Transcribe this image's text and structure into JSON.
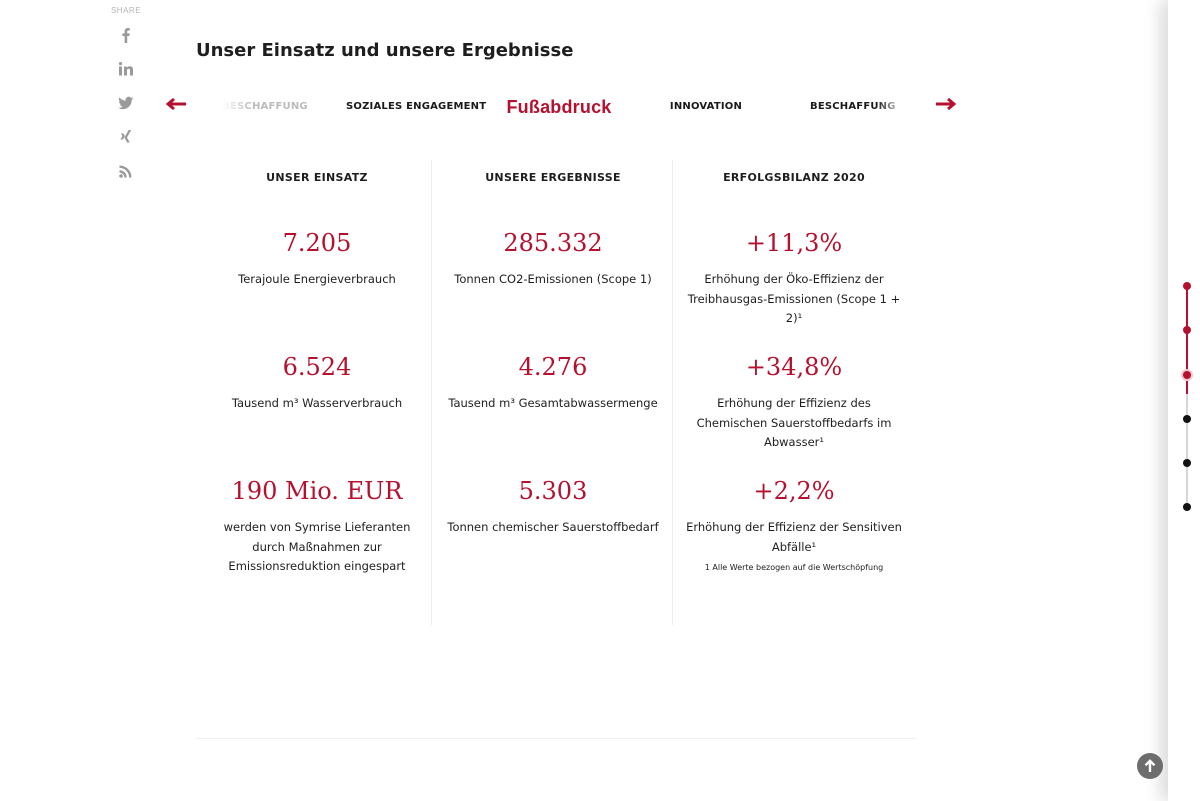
{
  "share": {
    "label": "SHARE",
    "icons": [
      "facebook-icon",
      "linkedin-icon",
      "twitter-icon",
      "xing-icon",
      "rss-icon"
    ]
  },
  "section": {
    "title": "Unser Einsatz und unsere Ergebnisse"
  },
  "tabs": {
    "items": [
      "BESCHAFFUNG",
      "SOZIALES ENGAGEMENT",
      "Fußabdruck",
      "INNOVATION",
      "BESCHAFFUNG"
    ],
    "active_index": 2
  },
  "columns": [
    {
      "heading": "UNSER EINSATZ",
      "metrics": [
        {
          "value": "7.205",
          "text": "Terajoule Energieverbrauch"
        },
        {
          "value": "6.524",
          "text": "Tausend m³ Wasserverbrauch"
        },
        {
          "value": "190 Mio. EUR",
          "text": "werden von Symrise Lieferanten durch Maßnahmen zur Emissionsreduktion eingespart"
        }
      ]
    },
    {
      "heading": "UNSERE ERGEBNISSE",
      "metrics": [
        {
          "value": "285.332",
          "text": "Tonnen CO2-Emissionen (Scope 1)"
        },
        {
          "value": "4.276",
          "text": "Tausend m³ Gesamtabwassermenge"
        },
        {
          "value": "5.303",
          "text": "Tonnen chemischer Sauerstoffbedarf"
        }
      ]
    },
    {
      "heading": "ERFOLGSBILANZ 2020",
      "metrics": [
        {
          "value": "+11,3%",
          "text": "Erhöhung der Öko-Effizienz der Treibhausgas-Emissionen (Scope 1 + 2)¹"
        },
        {
          "value": "+34,8%",
          "text": "Erhöhung der Effizienz des Chemischen Sauerstoffbedarfs im Abwasser¹"
        },
        {
          "value": "+2,2%",
          "text": "Erhöhung der Effizienz der Sensitiven Abfälle¹"
        }
      ],
      "footnote": "1 Alle Werte bezogen auf die Wertschöpfung"
    }
  ],
  "progress": {
    "total_steps": 6,
    "current_step": 3
  },
  "colors": {
    "accent": "#b5112f",
    "text": "#1e1e1e",
    "muted": "#9a9a9a"
  }
}
